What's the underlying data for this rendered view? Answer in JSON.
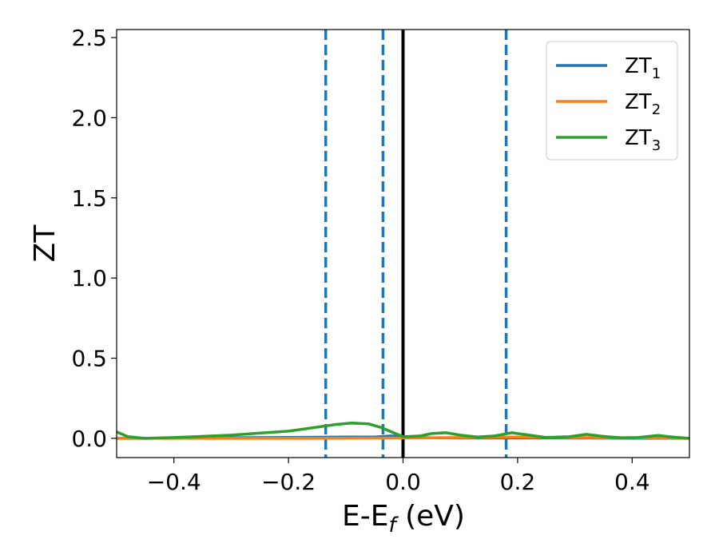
{
  "chart_data": {
    "type": "line",
    "xlabel_main": "E-E",
    "xlabel_sub": "f",
    "xlabel_unit": " (eV)",
    "ylabel": "ZT",
    "xlim": [
      -0.5,
      0.5
    ],
    "ylim": [
      -0.12,
      2.55
    ],
    "xticks": [
      -0.4,
      -0.2,
      0.0,
      0.2,
      0.4
    ],
    "xtick_labels": [
      "−0.4",
      "−0.2",
      "0.0",
      "0.2",
      "0.4"
    ],
    "yticks": [
      0.0,
      0.5,
      1.0,
      1.5,
      2.0,
      2.5
    ],
    "ytick_labels": [
      "0.0",
      "0.5",
      "1.0",
      "1.5",
      "2.0",
      "2.5"
    ],
    "legend_position": "top-right",
    "grid": false,
    "vlines": [
      {
        "x": -0.135,
        "style": "dashed",
        "color": "#1f77b4"
      },
      {
        "x": -0.035,
        "style": "dashed",
        "color": "#1f77b4"
      },
      {
        "x": 0.0,
        "style": "solid",
        "color": "#000000"
      },
      {
        "x": 0.18,
        "style": "dashed",
        "color": "#1f77b4"
      }
    ],
    "series": [
      {
        "name_main": "ZT",
        "name_sub": "1",
        "color": "#1f77b4",
        "x": [
          -0.5,
          -0.45,
          -0.4,
          -0.3,
          -0.2,
          -0.1,
          -0.05,
          -0.02,
          0.0,
          0.05,
          0.1,
          0.2,
          0.3,
          0.4,
          0.5
        ],
        "y": [
          0.0,
          0.0,
          0.002,
          0.004,
          0.006,
          0.008,
          0.008,
          0.015,
          0.01,
          0.003,
          0.002,
          0.002,
          0.002,
          0.001,
          0.0
        ]
      },
      {
        "name_main": "ZT",
        "name_sub": "2",
        "color": "#ff7f0e",
        "x": [
          -0.5,
          -0.4,
          -0.2,
          0.0,
          0.1,
          0.2,
          0.3,
          0.4,
          0.5
        ],
        "y": [
          0.0,
          0.0,
          0.0,
          0.002,
          0.005,
          0.008,
          0.005,
          0.004,
          0.0
        ]
      },
      {
        "name_main": "ZT",
        "name_sub": "3",
        "color": "#2ca02c",
        "x": [
          -0.5,
          -0.48,
          -0.45,
          -0.4,
          -0.3,
          -0.2,
          -0.15,
          -0.12,
          -0.09,
          -0.06,
          -0.04,
          -0.02,
          0.0,
          0.03,
          0.05,
          0.075,
          0.1,
          0.13,
          0.16,
          0.19,
          0.22,
          0.25,
          0.29,
          0.32,
          0.35,
          0.38,
          0.41,
          0.445,
          0.47,
          0.5
        ],
        "y": [
          0.04,
          0.01,
          0.0,
          0.005,
          0.02,
          0.045,
          0.07,
          0.085,
          0.095,
          0.09,
          0.07,
          0.04,
          0.01,
          0.015,
          0.03,
          0.035,
          0.02,
          0.008,
          0.015,
          0.035,
          0.02,
          0.005,
          0.01,
          0.025,
          0.012,
          0.003,
          0.005,
          0.018,
          0.008,
          0.0
        ]
      }
    ]
  }
}
